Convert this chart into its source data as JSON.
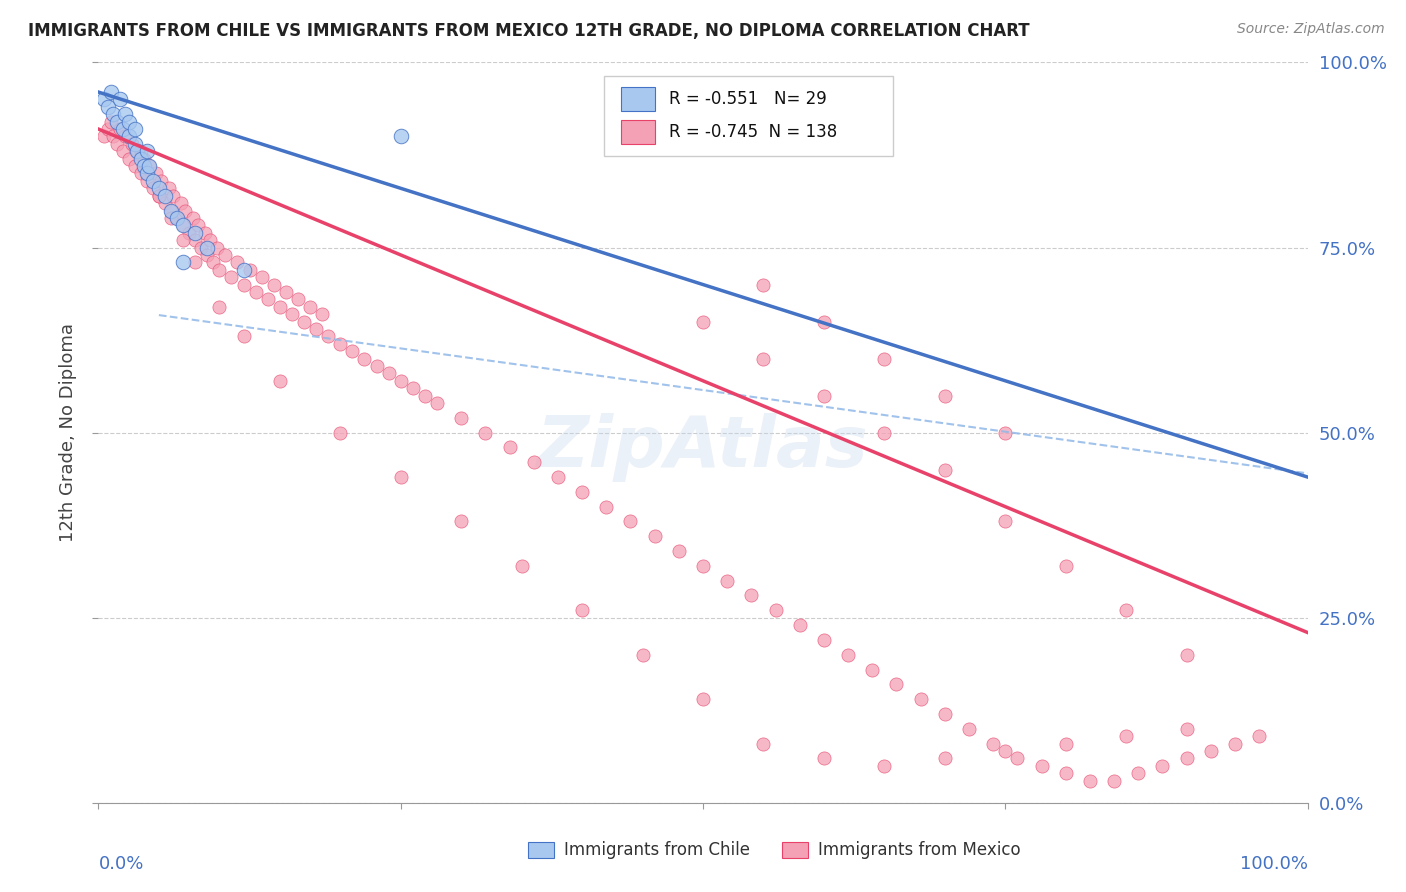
{
  "title": "IMMIGRANTS FROM CHILE VS IMMIGRANTS FROM MEXICO 12TH GRADE, NO DIPLOMA CORRELATION CHART",
  "source": "Source: ZipAtlas.com",
  "ylabel": "12th Grade, No Diploma",
  "legend_chile": "Immigrants from Chile",
  "legend_mexico": "Immigrants from Mexico",
  "r_chile": -0.551,
  "n_chile": 29,
  "r_mexico": -0.745,
  "n_mexico": 138,
  "yticks": [
    0.0,
    0.25,
    0.5,
    0.75,
    1.0
  ],
  "ytick_labels": [
    "0.0%",
    "25.0%",
    "50.0%",
    "75.0%",
    "100.0%"
  ],
  "chile_color": "#a8c8f0",
  "mexico_color": "#f4a0b5",
  "chile_line_color": "#4472c4",
  "mexico_line_color": "#e8426a",
  "dashed_line_color": "#90b8e8",
  "background_color": "#ffffff",
  "grid_color": "#cccccc",
  "watermark": "ZipAtlas",
  "chile_x": [
    0.005,
    0.008,
    0.01,
    0.012,
    0.015,
    0.018,
    0.02,
    0.022,
    0.025,
    0.025,
    0.03,
    0.03,
    0.032,
    0.035,
    0.038,
    0.04,
    0.04,
    0.042,
    0.045,
    0.05,
    0.055,
    0.06,
    0.065,
    0.07,
    0.08,
    0.09,
    0.12,
    0.25,
    0.07
  ],
  "chile_y": [
    0.95,
    0.94,
    0.96,
    0.93,
    0.92,
    0.95,
    0.91,
    0.93,
    0.9,
    0.92,
    0.89,
    0.91,
    0.88,
    0.87,
    0.86,
    0.88,
    0.85,
    0.86,
    0.84,
    0.83,
    0.82,
    0.8,
    0.79,
    0.78,
    0.77,
    0.75,
    0.72,
    0.9,
    0.73
  ],
  "mexico_x": [
    0.005,
    0.008,
    0.01,
    0.012,
    0.015,
    0.018,
    0.02,
    0.022,
    0.025,
    0.028,
    0.03,
    0.032,
    0.035,
    0.038,
    0.04,
    0.042,
    0.045,
    0.048,
    0.05,
    0.052,
    0.055,
    0.058,
    0.06,
    0.062,
    0.065,
    0.068,
    0.07,
    0.072,
    0.075,
    0.078,
    0.08,
    0.082,
    0.085,
    0.088,
    0.09,
    0.092,
    0.095,
    0.098,
    0.1,
    0.105,
    0.11,
    0.115,
    0.12,
    0.125,
    0.13,
    0.135,
    0.14,
    0.145,
    0.15,
    0.155,
    0.16,
    0.165,
    0.17,
    0.175,
    0.18,
    0.185,
    0.19,
    0.2,
    0.21,
    0.22,
    0.23,
    0.24,
    0.25,
    0.26,
    0.27,
    0.28,
    0.3,
    0.32,
    0.34,
    0.36,
    0.38,
    0.4,
    0.42,
    0.44,
    0.46,
    0.48,
    0.5,
    0.52,
    0.54,
    0.56,
    0.58,
    0.6,
    0.62,
    0.64,
    0.66,
    0.68,
    0.7,
    0.72,
    0.74,
    0.76,
    0.78,
    0.8,
    0.82,
    0.84,
    0.86,
    0.88,
    0.9,
    0.92,
    0.94,
    0.96,
    0.035,
    0.04,
    0.05,
    0.06,
    0.07,
    0.08,
    0.1,
    0.12,
    0.15,
    0.2,
    0.25,
    0.3,
    0.35,
    0.4,
    0.45,
    0.5,
    0.55,
    0.6,
    0.65,
    0.7,
    0.75,
    0.8,
    0.85,
    0.9,
    0.5,
    0.55,
    0.6,
    0.65,
    0.7,
    0.75,
    0.8,
    0.85,
    0.9,
    0.55,
    0.6,
    0.65,
    0.7,
    0.75
  ],
  "mexico_y": [
    0.9,
    0.91,
    0.92,
    0.9,
    0.89,
    0.91,
    0.88,
    0.9,
    0.87,
    0.89,
    0.86,
    0.88,
    0.85,
    0.87,
    0.84,
    0.86,
    0.83,
    0.85,
    0.82,
    0.84,
    0.81,
    0.83,
    0.8,
    0.82,
    0.79,
    0.81,
    0.78,
    0.8,
    0.77,
    0.79,
    0.76,
    0.78,
    0.75,
    0.77,
    0.74,
    0.76,
    0.73,
    0.75,
    0.72,
    0.74,
    0.71,
    0.73,
    0.7,
    0.72,
    0.69,
    0.71,
    0.68,
    0.7,
    0.67,
    0.69,
    0.66,
    0.68,
    0.65,
    0.67,
    0.64,
    0.66,
    0.63,
    0.62,
    0.61,
    0.6,
    0.59,
    0.58,
    0.57,
    0.56,
    0.55,
    0.54,
    0.52,
    0.5,
    0.48,
    0.46,
    0.44,
    0.42,
    0.4,
    0.38,
    0.36,
    0.34,
    0.32,
    0.3,
    0.28,
    0.26,
    0.24,
    0.22,
    0.2,
    0.18,
    0.16,
    0.14,
    0.12,
    0.1,
    0.08,
    0.06,
    0.05,
    0.04,
    0.03,
    0.03,
    0.04,
    0.05,
    0.06,
    0.07,
    0.08,
    0.09,
    0.88,
    0.85,
    0.82,
    0.79,
    0.76,
    0.73,
    0.67,
    0.63,
    0.57,
    0.5,
    0.44,
    0.38,
    0.32,
    0.26,
    0.2,
    0.14,
    0.08,
    0.06,
    0.05,
    0.06,
    0.07,
    0.08,
    0.09,
    0.1,
    0.65,
    0.6,
    0.55,
    0.5,
    0.45,
    0.38,
    0.32,
    0.26,
    0.2,
    0.7,
    0.65,
    0.6,
    0.55,
    0.5
  ]
}
